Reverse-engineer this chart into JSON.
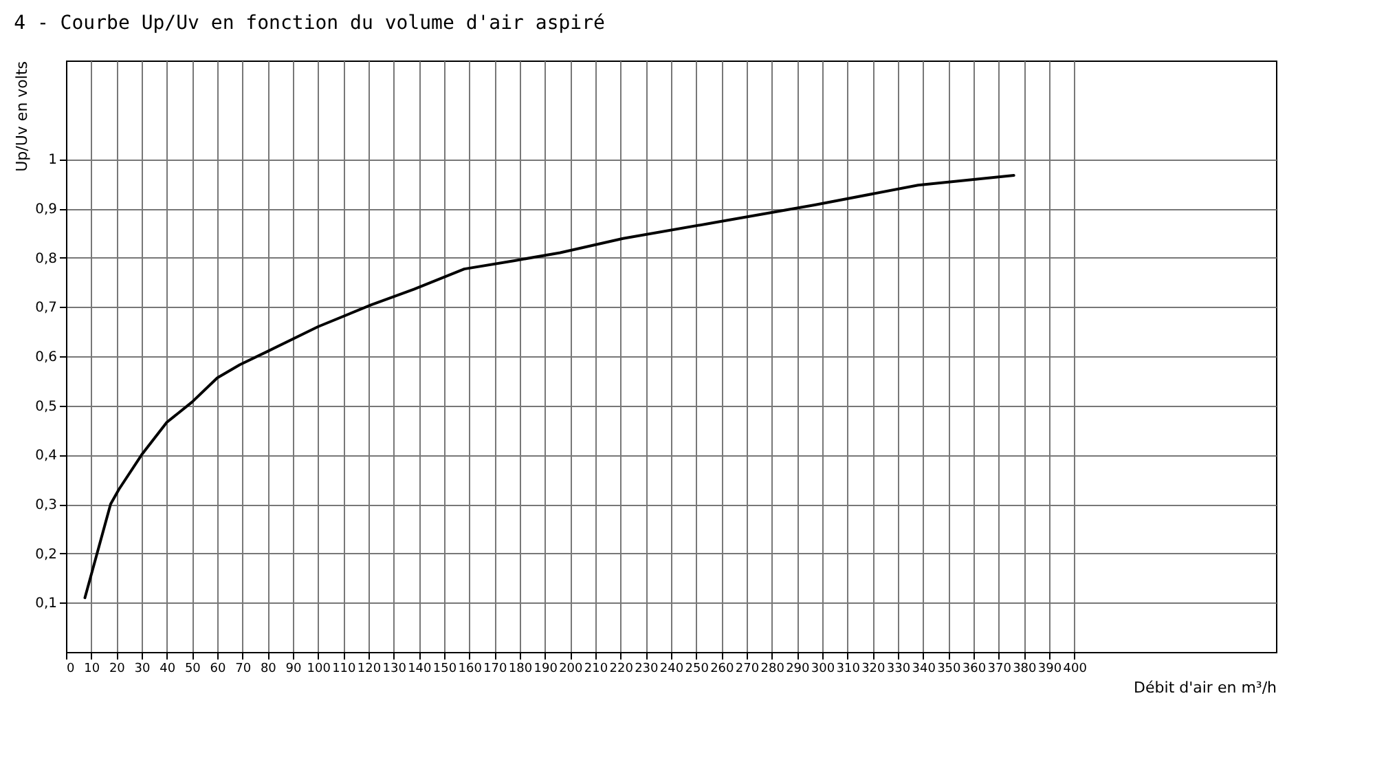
{
  "chart_data": {
    "type": "line",
    "title": "4 - Courbe Up/Uv en fonction du volume d'air aspiré",
    "xlabel": "Débit d'air en m³/h",
    "ylabel": "Up/Uv en volts",
    "x": [
      7.5,
      17.7,
      21,
      30,
      40,
      50,
      60,
      69,
      80,
      100,
      121,
      138,
      158,
      178,
      196,
      221,
      257,
      297,
      338,
      376
    ],
    "series": [
      {
        "color": "#000000",
        "values": [
          0.11,
          0.3,
          0.33,
          0.4,
          0.466,
          0.507,
          0.556,
          0.583,
          0.61,
          0.66,
          0.704,
          0.736,
          0.777,
          0.794,
          0.81,
          0.839,
          0.871,
          0.907,
          0.947,
          0.967
        ]
      }
    ],
    "xlim": [
      0,
      480
    ],
    "xticks": [
      0,
      10,
      20,
      30,
      40,
      50,
      60,
      70,
      80,
      90,
      100,
      110,
      120,
      130,
      140,
      150,
      160,
      170,
      180,
      190,
      200,
      210,
      220,
      230,
      240,
      250,
      260,
      270,
      280,
      290,
      300,
      310,
      320,
      330,
      340,
      350,
      360,
      370,
      380,
      390,
      400
    ],
    "ylim": [
      0,
      1.2
    ],
    "yticks": [
      {
        "value": 0.1,
        "label": "0,1"
      },
      {
        "value": 0.2,
        "label": "0,2"
      },
      {
        "value": 0.3,
        "label": "0,3"
      },
      {
        "value": 0.4,
        "label": "0,4"
      },
      {
        "value": 0.5,
        "label": "0,5"
      },
      {
        "value": 0.6,
        "label": "0,6"
      },
      {
        "value": 0.7,
        "label": "0,7"
      },
      {
        "value": 0.8,
        "label": "0,8"
      },
      {
        "value": 0.9,
        "label": "0,9"
      },
      {
        "value": 1,
        "label": "1"
      }
    ],
    "grid": true,
    "line_style": "solid"
  }
}
